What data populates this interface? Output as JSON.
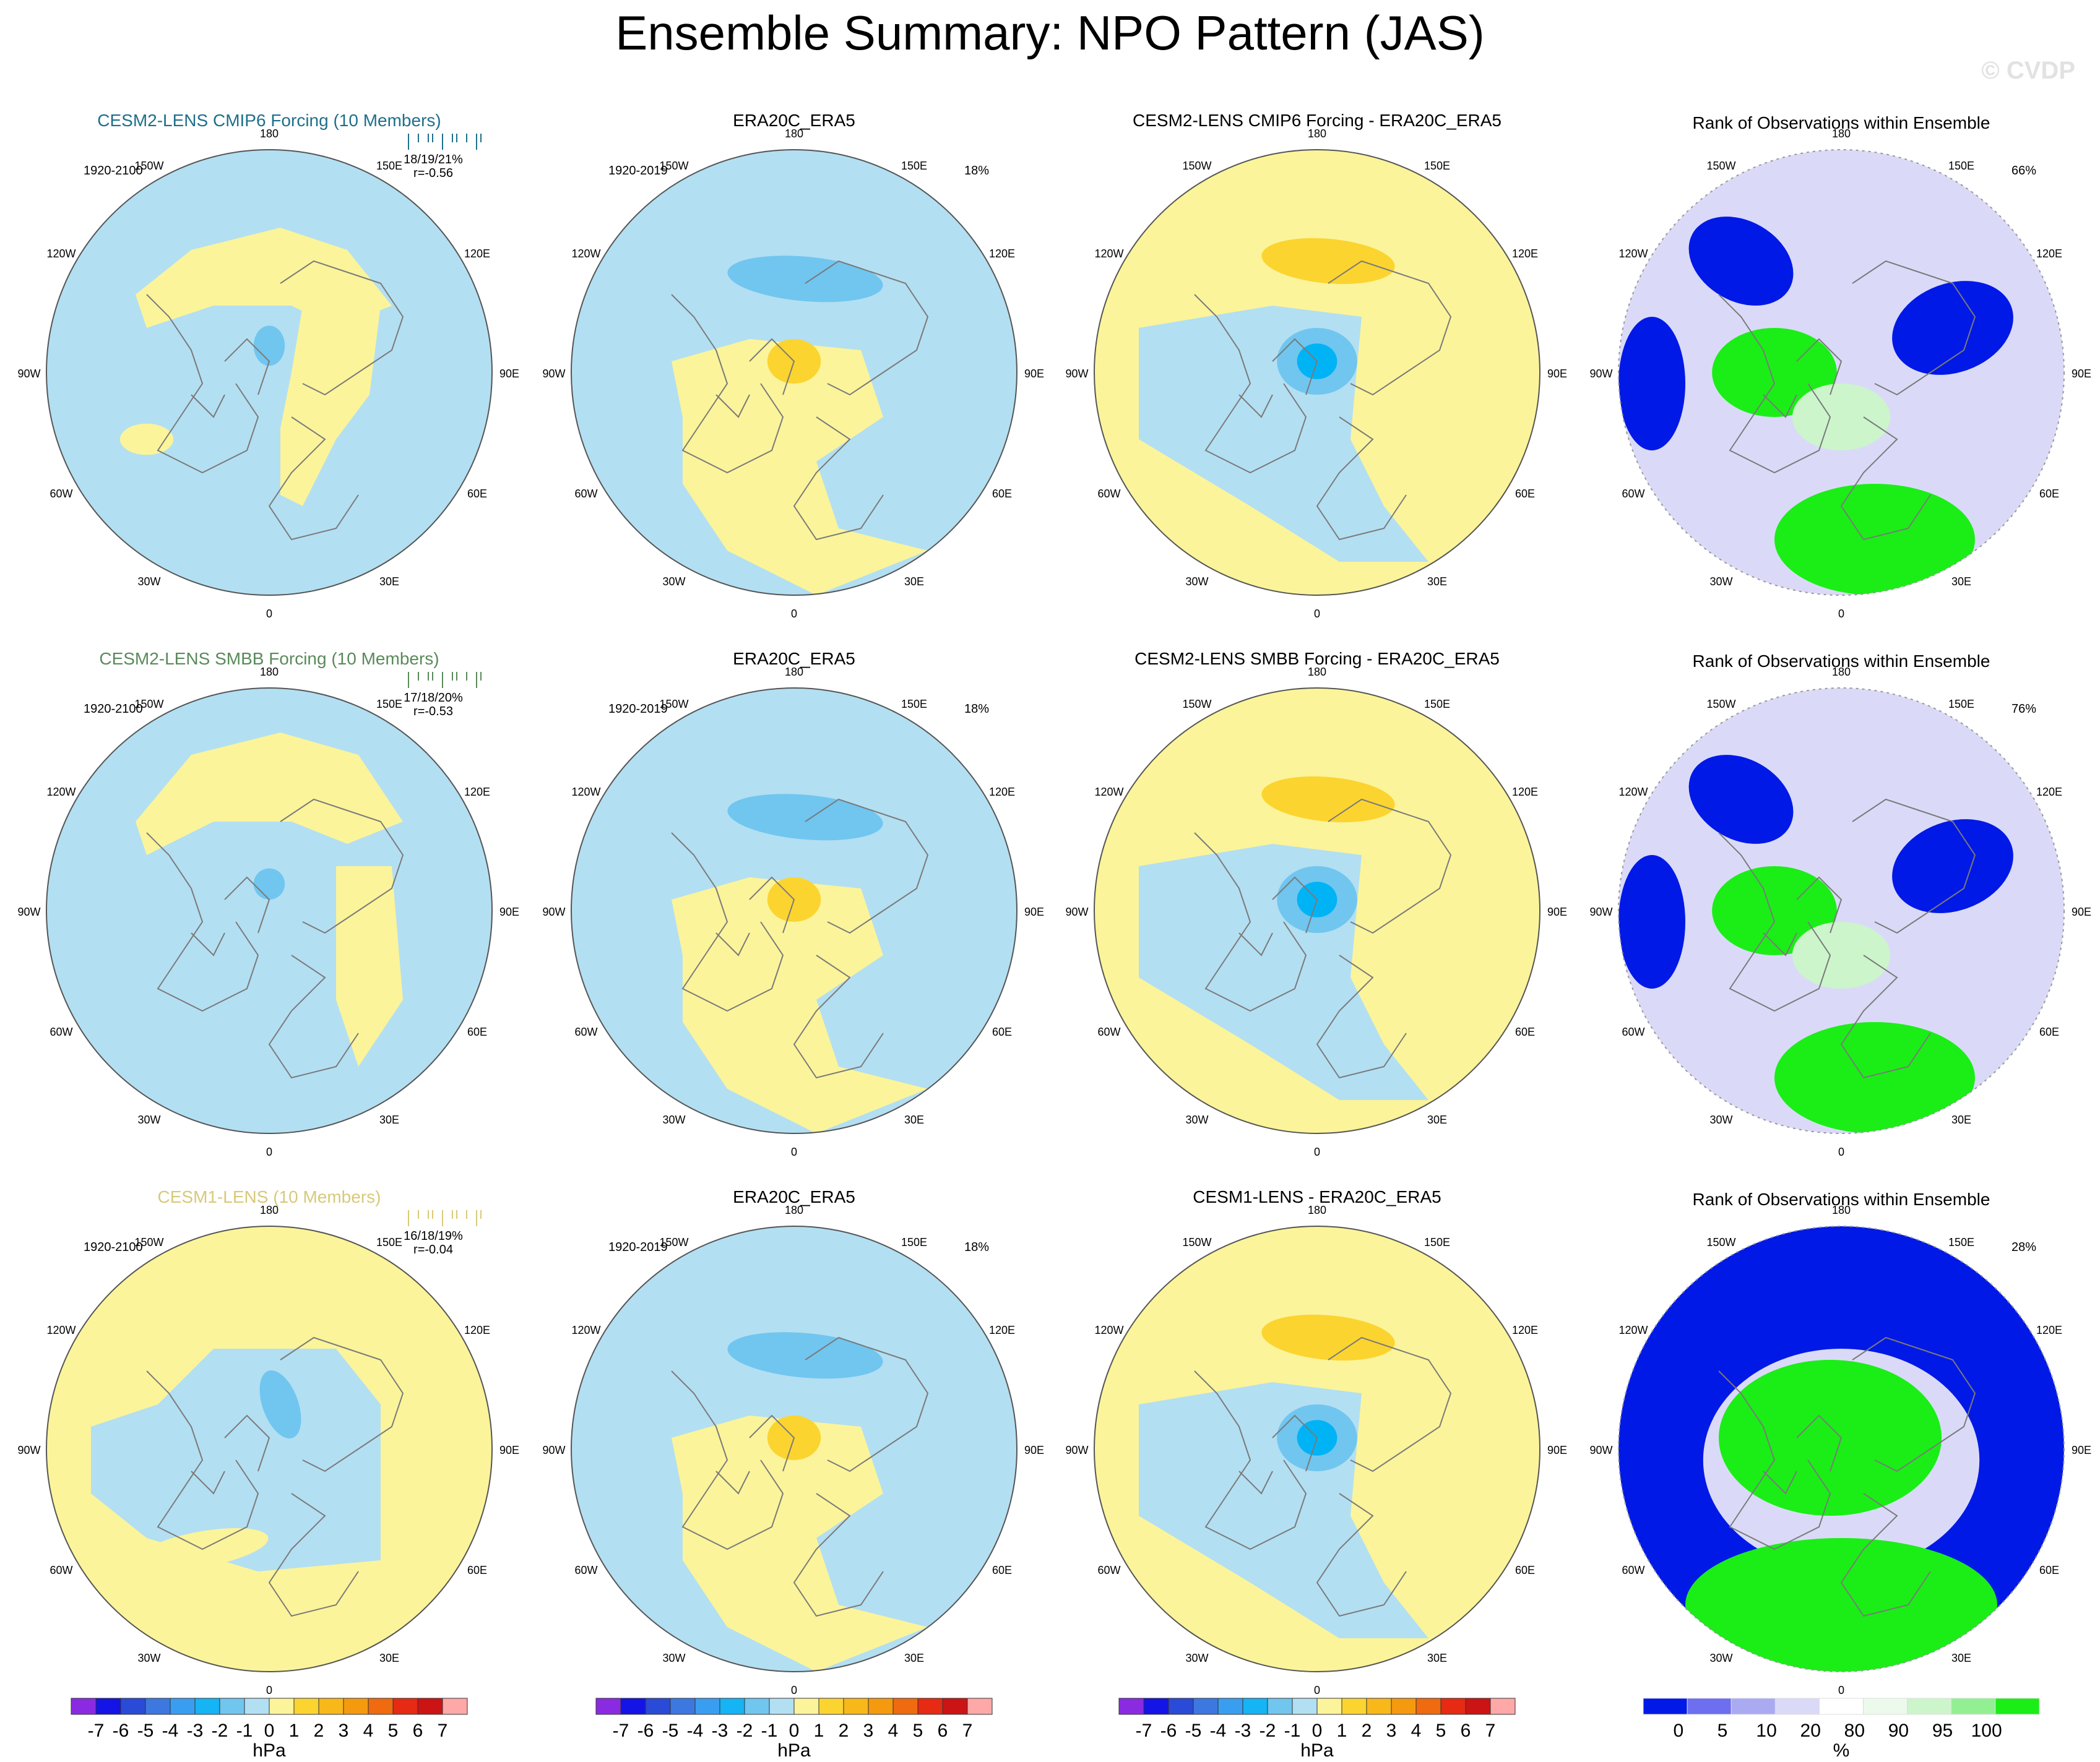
{
  "title": "Ensemble Summary: NPO Pattern (JAS)",
  "watermark": "© CVDP",
  "colors": {
    "ocean_like_neutral": "#b3dff2",
    "pos1": "#fbf49a",
    "pos2": "#fcd430",
    "neg1": "#b3dff2",
    "neg2": "#70c6ef",
    "neg3": "#00b3f5",
    "rank_blue": "#0019e6",
    "rank_green": "#1aee16",
    "rank_lightgreen": "#ccf5cb",
    "rank_lavender": "#dadaf8",
    "title_row1": "#1f6f8b",
    "title_row2": "#5a8a5a",
    "title_row3": "#d8c97a"
  },
  "longitude_labels": [
    "180",
    "150E",
    "120E",
    "90E",
    "60E",
    "30E",
    "0",
    "30W",
    "60W",
    "90W",
    "120W",
    "150W"
  ],
  "rows": [
    {
      "model": {
        "title": "CESM2-LENS CMIP6 Forcing (10 Members)",
        "period": "1920-2100",
        "stats": "18/19/21%",
        "corr": "r=-0.56",
        "title_color": "#1f6f8b"
      },
      "obs": {
        "title": "ERA20C_ERA5",
        "period": "1920-2019",
        "pct": "18%"
      },
      "diff": {
        "title": "CESM2-LENS CMIP6 Forcing - ERA20C_ERA5"
      },
      "rank": {
        "title": "Rank of Observations within Ensemble",
        "pct": "66%"
      }
    },
    {
      "model": {
        "title": "CESM2-LENS SMBB Forcing (10 Members)",
        "period": "1920-2100",
        "stats": "17/18/20%",
        "corr": "r=-0.53",
        "title_color": "#5a8a5a"
      },
      "obs": {
        "title": "ERA20C_ERA5",
        "period": "1920-2019",
        "pct": "18%"
      },
      "diff": {
        "title": "CESM2-LENS SMBB Forcing - ERA20C_ERA5"
      },
      "rank": {
        "title": "Rank of Observations within Ensemble",
        "pct": "76%"
      }
    },
    {
      "model": {
        "title": "CESM1-LENS (10 Members)",
        "period": "1920-2100",
        "stats": "16/18/19%",
        "corr": "r=-0.04",
        "title_color": "#d8c97a"
      },
      "obs": {
        "title": "ERA20C_ERA5",
        "period": "1920-2019",
        "pct": "18%"
      },
      "diff": {
        "title": "CESM1-LENS - ERA20C_ERA5"
      },
      "rank": {
        "title": "Rank of Observations within Ensemble",
        "pct": "28%"
      }
    }
  ],
  "chart_data": {
    "type": "heatmap",
    "projection": "north-polar-stereographic",
    "variable": "NPO Pattern (JAS)",
    "colorbar_hpa": {
      "label": "hPa",
      "tick_labels": [
        "-7",
        "-6",
        "-5",
        "-4",
        "-3",
        "-2",
        "-1",
        "0",
        "1",
        "2",
        "3",
        "4",
        "5",
        "6",
        "7"
      ],
      "colors": [
        "#8a2be2",
        "#1414e6",
        "#2a4bd7",
        "#3c78e0",
        "#3a9ef0",
        "#14b4f5",
        "#70c6ef",
        "#b3dff2",
        "#fbf49a",
        "#fcd430",
        "#f8b81a",
        "#f59a0f",
        "#f06a10",
        "#e62a14",
        "#cc1414",
        "#ffa8a8"
      ]
    },
    "colorbar_rank": {
      "label": "%",
      "tick_labels": [
        "0",
        "5",
        "10",
        "20",
        "80",
        "90",
        "95",
        "100"
      ],
      "colors": [
        "#0019e6",
        "#6e6ef0",
        "#aaaaf3",
        "#dadaf8",
        "#ffffff",
        "#ecfaec",
        "#ccf5cb",
        "#93f092",
        "#1aee16"
      ]
    }
  }
}
